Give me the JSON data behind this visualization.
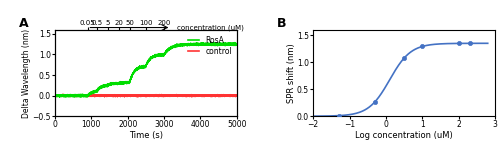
{
  "panel_A": {
    "title": "A",
    "xlabel": "Time (s)",
    "ylabel": "Delta Wavelength (nm)",
    "xlim": [
      0,
      5000
    ],
    "ylim": [
      -0.5,
      1.6
    ],
    "yticks": [
      -0.5,
      0.0,
      0.5,
      1.0,
      1.5
    ],
    "xticks": [
      0,
      1000,
      2000,
      3000,
      4000,
      5000
    ],
    "top_labels": [
      "0.05",
      "0.5",
      "5",
      "20",
      "50",
      "100",
      "200"
    ],
    "top_label_extra": "concentration (uM)",
    "green_line_color": "#00dd00",
    "red_line_color": "#ff3333",
    "legend_labels": [
      "RosA",
      "control"
    ],
    "conc_times": [
      900,
      1150,
      1450,
      1750,
      2050,
      2500,
      3000
    ],
    "step_levels": [
      0.0,
      0.12,
      0.26,
      0.3,
      0.32,
      0.72,
      1.0,
      1.25
    ]
  },
  "panel_B": {
    "title": "B",
    "xlabel": "Log concentration (uM)",
    "ylabel": "SPR shift (nm)",
    "xlim": [
      -2,
      3
    ],
    "ylim": [
      0,
      1.6
    ],
    "yticks": [
      0.0,
      0.5,
      1.0,
      1.5
    ],
    "xticks": [
      -2,
      -1,
      0,
      1,
      2,
      3
    ],
    "Bmax": 1.35,
    "KD_uM": 1.27,
    "n": 1.5,
    "scatter_x": [
      -1.3,
      -0.3,
      0.5,
      1.0,
      2.0,
      2.3
    ],
    "curve_color": "#4472c4"
  }
}
